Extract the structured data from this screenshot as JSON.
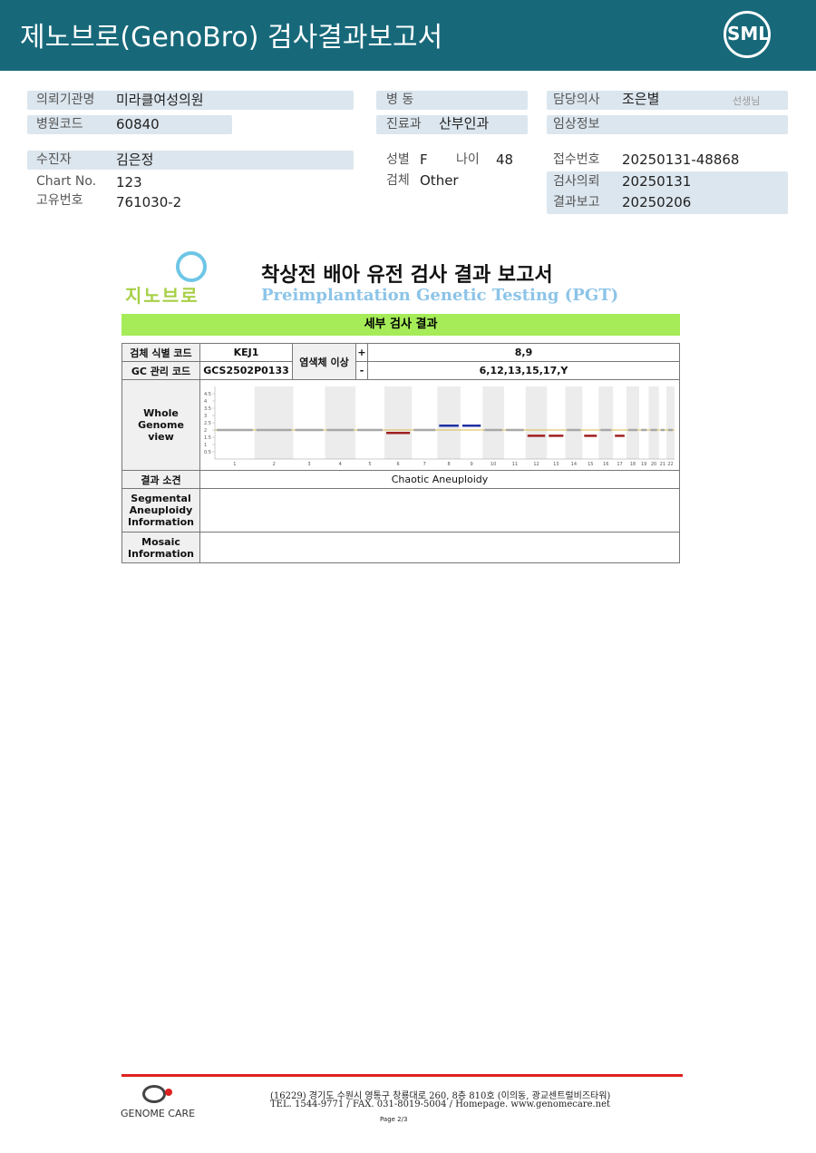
{
  "header": {
    "title": "제노브로(GenoBro) 검사결과보고서",
    "logo": "SML"
  },
  "patient_info": {
    "institution": {
      "label": "의뢰기관명",
      "value": "미라클여성의원"
    },
    "hospital_code": {
      "label": "병원코드",
      "value": "60840"
    },
    "patient": {
      "label": "수진자",
      "value": "김은정"
    },
    "chart_no": {
      "label": "Chart No.",
      "value": "123"
    },
    "unique_no": {
      "label": "고유번호",
      "value": "761030-2"
    },
    "ward": {
      "label": "병 동"
    },
    "department": {
      "label": "진료과",
      "value": "산부인과"
    },
    "sex": {
      "label": "성별",
      "value": "F"
    },
    "age": {
      "label": "나이",
      "value": "48"
    },
    "specimen": {
      "label": "검체",
      "value": "Other"
    },
    "doctor": {
      "label": "담당의사",
      "value": "조은별",
      "suffix": "선생님"
    },
    "clinical_info": {
      "label": "임상정보"
    },
    "receipt_no": {
      "label": "접수번호",
      "value": "20250131-48868"
    },
    "request_date": {
      "label": "검사의뢰",
      "value": "20250131"
    },
    "report_date": {
      "label": "결과보고",
      "value": "20250206"
    }
  },
  "report": {
    "logo": "지노브로",
    "title": "착상전 배아 유전 검사 결과 보고서",
    "subtitle": "Preimplantation Genetic Testing (PGT)",
    "section": "세부 검사 결과",
    "table": {
      "sample_id": {
        "label": "검체 식별 코드",
        "value": "KEJ1"
      },
      "gc_code": {
        "label": "GC 관리 코드",
        "value": "GCS2502P0133"
      },
      "abnormality": {
        "label": "염색체 이상",
        "gain_sign": "+",
        "gain": "8,9",
        "loss_sign": "-",
        "loss": "6,12,13,15,17,Y"
      },
      "genome_view_label": "Whole Genome view",
      "finding": {
        "label": "결과 소견",
        "value": "Chaotic Aneuploidy"
      },
      "segmental": {
        "label": "Segmental Aneuploidy Information"
      },
      "mosaic": {
        "label": "Mosaic Information"
      }
    },
    "genome_view": {
      "ylim": [
        0,
        5
      ],
      "yticks": [
        0.5,
        1,
        1.5,
        2,
        2.5,
        3,
        3.5,
        4,
        4.5
      ],
      "reference_line": 2,
      "chromosomes": [
        "1",
        "2",
        "3",
        "4",
        "5",
        "6",
        "7",
        "8",
        "9",
        "10",
        "11",
        "12",
        "13",
        "14",
        "15",
        "16",
        "17",
        "18",
        "19",
        "20",
        "21",
        "22"
      ],
      "copy_number": [
        2,
        2,
        2,
        2,
        2,
        1.8,
        2,
        2.3,
        2.3,
        2,
        2,
        1.6,
        1.6,
        2,
        1.6,
        2,
        1.6,
        2,
        2,
        2,
        2,
        2
      ]
    }
  },
  "footer": {
    "company": "GENOME CARE",
    "address": "(16229) 경기도 수원시 영통구 창룡대로 260, 8층 810호 (이의동, 광교센트럴비즈타워)",
    "contact": "TEL. 1544-9771 / FAX. 031-8019-5004 / Homepage. www.genomecare.net",
    "page": "Page 2/3"
  }
}
